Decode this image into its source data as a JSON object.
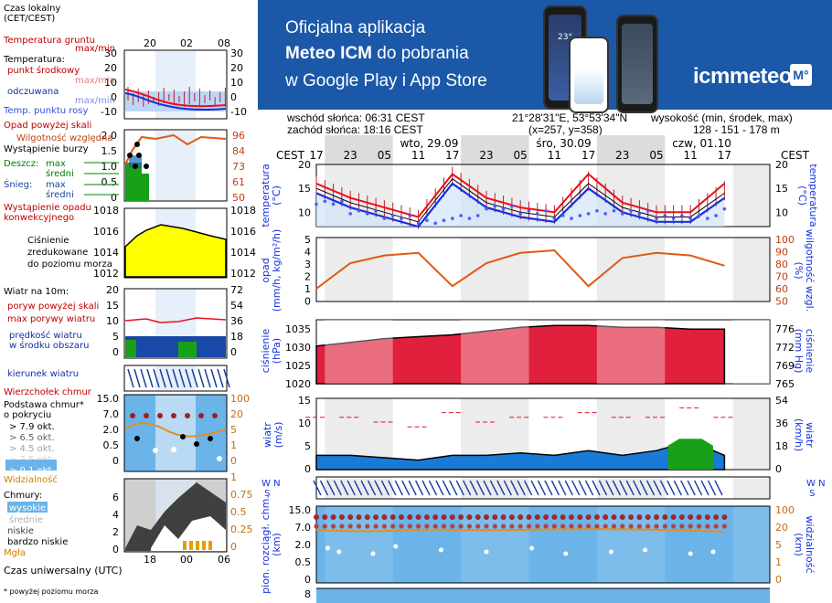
{
  "banner": {
    "line1": "Oficjalna aplikacja",
    "line2_bold": "Meteo ICM",
    "line2_rest": " do pobrania",
    "line3": "w Google Play i App Store",
    "logo": "icmmeteo",
    "logo_mark": "M°",
    "phone_temp": "23°"
  },
  "header": {
    "sunrise": "wschód słońca: 06:31 CEST",
    "sunset": "zachód słońca: 18:16 CEST",
    "coords": "21°28'31\"E, 53°53'34\"N",
    "grid": "(x=257,  y=358)",
    "elev_label": "wysokość (min, środek, max)",
    "elev_values": "128 - 151 - 178 m"
  },
  "legend": {
    "time_local": "Czas lokalny\n(CET/CEST)",
    "time_ticks": [
      "20",
      "02",
      "08"
    ],
    "utc_ticks": [
      "18",
      "00",
      "06"
    ],
    "utc": "Czas uniwersalny (UTC)",
    "footnote": "* powyżej poziomu morza",
    "temp": {
      "ground": "Temperatura gruntu",
      "ground_mm": "max/min",
      "title": "Temperatura:",
      "mid": "punkt środkowy",
      "max_min_red": "max/min",
      "felt": "odczuwana",
      "max_min_blue": "max/min",
      "dew": "Temp. punktu rosy",
      "ticks": [
        "30",
        "20",
        "10",
        "0",
        "-10"
      ]
    },
    "precip": {
      "opad": "Opad powyżej skali",
      "rh": "Wilgotność względna",
      "storm": "Wystąpienie burzy",
      "rain": "Deszcz:",
      "max": "max",
      "avg": "średni",
      "snow": "Śnieg:",
      "occur": "Wystąpienie opadu\nkonwekcyjnego",
      "ticks_l": [
        "2.0",
        "1.5",
        "1.0",
        "0.5",
        "0"
      ],
      "ticks_r": [
        "96",
        "84",
        "73",
        "61",
        "50"
      ]
    },
    "pressure": {
      "title": "Ciśnienie\nzredukowane\ndo poziomu morza",
      "ticks": [
        "1018",
        "1016",
        "1014",
        "1012"
      ]
    },
    "wind": {
      "title": "Wiatr na 10m:",
      "gust_over": "poryw powyżej skali",
      "gust_max": "max porywy wiatru",
      "speed": "prędkość wiatru\nw środku obszaru",
      "ticks_l": [
        "20",
        "15",
        "10",
        "5",
        "0"
      ],
      "ticks_r": [
        "72",
        "54",
        "36",
        "18",
        "0"
      ]
    },
    "direction": "kierunek wiatru",
    "clouds": {
      "top": "Wierzchołek chmur",
      "base": "Podstawa chmur*\no pokryciu",
      "cov": [
        "> 7.9 okt.",
        "> 6.5 okt.",
        "> 4.5 okt.",
        "> 2.5 okt.",
        "> 0.1 okt."
      ],
      "vis": "Widzialność",
      "ticks_l": [
        "15.0",
        "7.0",
        "2.0",
        "0.5",
        "0"
      ],
      "ticks_r": [
        "100",
        "20",
        "5",
        "1",
        "0"
      ]
    },
    "cloud_layers": {
      "title": "Chmury:",
      "high": "wysokie",
      "mid": "średnie",
      "low": "niskie",
      "vlow": "bardzo niskie",
      "fog": "Mgła",
      "ticks_l": [
        "6",
        "4",
        "2",
        "0"
      ],
      "ticks_r": [
        "1",
        "0.75",
        "0.5",
        "0.25",
        "0"
      ]
    }
  },
  "main": {
    "days": [
      "wto, 29.09",
      "śro, 30.09",
      "czw, 01.10"
    ],
    "cest": "CEST",
    "hours": [
      "17",
      "23",
      "05",
      "11",
      "17",
      "23",
      "05",
      "11",
      "17",
      "23",
      "05",
      "11",
      "17"
    ],
    "temp_label": "temperatura\n(°C)",
    "temp_ticks": [
      "20",
      "15",
      "10"
    ],
    "precip_label": "opad\n(mm/h, kg/m²/h)",
    "precip_ticks": [
      "5",
      "4",
      "3",
      "2",
      "1",
      "0"
    ],
    "rh_label": "wilgotność wzgl.\n(%)",
    "rh_ticks": [
      "100",
      "90",
      "80",
      "70",
      "60",
      "50"
    ],
    "press_label": "ciśnienie\n(hPa)",
    "press_ticks": [
      "1035",
      "1030",
      "1025",
      "1020"
    ],
    "press_r_label": "ciśnienie\n(mm Hg)",
    "press_r_ticks": [
      "776",
      "772",
      "769",
      "765"
    ],
    "wind_label": "wiatr\n(m/s)",
    "wind_ticks": [
      "15",
      "10",
      "5",
      "0"
    ],
    "wind_r_label": "wiatr\n(km/h)",
    "wind_r_ticks": [
      "54",
      "36",
      "18",
      "0"
    ],
    "dir_label_l": "W N\n   S",
    "dir_label_r": "W N\n   S",
    "cloud_label": "pion. rozciągł. chm.\n(km)",
    "cloud_ticks": [
      "15.0",
      "7.0",
      "2.0",
      "0.5",
      "0"
    ],
    "vis_label": "widzialność\n(km)",
    "vis_ticks": [
      "100",
      "20",
      "5",
      "1",
      "0"
    ],
    "bottom_tick": "8"
  },
  "colors": {
    "red": "#e8101c",
    "blue": "#1530e0",
    "dew": "#4a5bff",
    "rh": "#e05a10",
    "press_fill": "#e0203c",
    "wind_fill": "#1a7ad8",
    "cloud_bg": "#6ab4ea",
    "banner": "#1b58a8"
  },
  "chart_data": {
    "type": "line",
    "x_hours": [
      0,
      6,
      12,
      18,
      24,
      30,
      36,
      42,
      48,
      54,
      60,
      66,
      72
    ],
    "x_tick_labels_cest": [
      "17",
      "23",
      "05",
      "11",
      "17",
      "23",
      "05",
      "11",
      "17",
      "23",
      "05",
      "11",
      "17"
    ],
    "series": [
      {
        "name": "temperatura max",
        "values": [
          16,
          13,
          11,
          9,
          18,
          13,
          11,
          10,
          18,
          12,
          10,
          10,
          16
        ]
      },
      {
        "name": "temperatura",
        "values": [
          15,
          12,
          10,
          8,
          17,
          12,
          10,
          9,
          16,
          11,
          9,
          9,
          14
        ]
      },
      {
        "name": "odczuwana",
        "values": [
          14,
          11,
          9,
          7,
          16,
          11,
          9,
          8,
          15,
          10,
          8,
          8,
          13
        ]
      },
      {
        "name": "Temp. punktu rosy",
        "values": [
          12,
          10,
          9,
          8,
          9,
          11,
          10,
          9,
          10,
          10,
          9,
          9,
          11
        ]
      },
      {
        "name": "wilgotność względna",
        "values": [
          60,
          80,
          86,
          88,
          62,
          80,
          88,
          90,
          62,
          84,
          88,
          86,
          78
        ]
      },
      {
        "name": "ciśnienie",
        "values": [
          1029,
          1030,
          1031,
          1031.5,
          1032,
          1033,
          1034,
          1034.5,
          1034.5,
          1034,
          1034,
          1033.5,
          1033.5
        ]
      },
      {
        "name": "wiatr",
        "values": [
          3,
          3,
          2.5,
          2,
          3,
          3,
          3.5,
          3,
          4,
          3,
          4,
          6,
          3
        ]
      },
      {
        "name": "poryw",
        "values": [
          11,
          11,
          10,
          9,
          12,
          10,
          11,
          11,
          12,
          11,
          11,
          13,
          11
        ]
      }
    ],
    "ylim_temp": [
      7,
      20
    ],
    "ylim_rh": [
      50,
      100
    ],
    "ylim_press": [
      1019,
      1036
    ],
    "ylim_wind": [
      0,
      15
    ]
  }
}
